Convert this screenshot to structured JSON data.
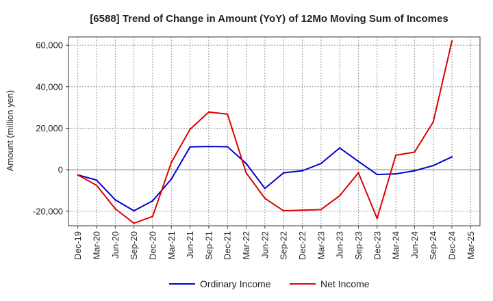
{
  "chart_data": {
    "type": "line",
    "title": "[6588]  Trend of Change in Amount (YoY) of 12Mo Moving Sum of Incomes",
    "ylabel": "Amount (million yen)",
    "xlabel": "",
    "ylim": [
      -27000,
      64000
    ],
    "yticks": [
      -20000,
      0,
      20000,
      40000,
      60000
    ],
    "ytick_labels": [
      "-20,000",
      "0",
      "20,000",
      "40,000",
      "60,000"
    ],
    "categories": [
      "Dec-19",
      "Mar-20",
      "Jun-20",
      "Sep-20",
      "Dec-20",
      "Mar-21",
      "Jun-21",
      "Sep-21",
      "Dec-21",
      "Mar-22",
      "Jun-22",
      "Sep-22",
      "Dec-22",
      "Mar-23",
      "Jun-23",
      "Sep-23",
      "Dec-23",
      "Mar-24",
      "Jun-24",
      "Sep-24",
      "Dec-24",
      "Mar-25"
    ],
    "grid": true,
    "legend_position": "bottom",
    "series": [
      {
        "name": "Ordinary Income",
        "color": "#0000cc",
        "values": [
          -2500,
          -5000,
          -14500,
          -19800,
          -15000,
          -4500,
          11000,
          11200,
          11100,
          3000,
          -9000,
          -1500,
          -500,
          3000,
          10500,
          4000,
          -2300,
          -2000,
          -500,
          2000,
          6200,
          null
        ]
      },
      {
        "name": "Net Income",
        "color": "#dd0000",
        "values": [
          -2500,
          -7500,
          -18800,
          -25800,
          -22500,
          3500,
          19500,
          27800,
          26800,
          -1500,
          -13800,
          -19800,
          -19500,
          -19200,
          -12500,
          -1500,
          -23500,
          7000,
          8500,
          23000,
          62000,
          null
        ]
      }
    ]
  }
}
